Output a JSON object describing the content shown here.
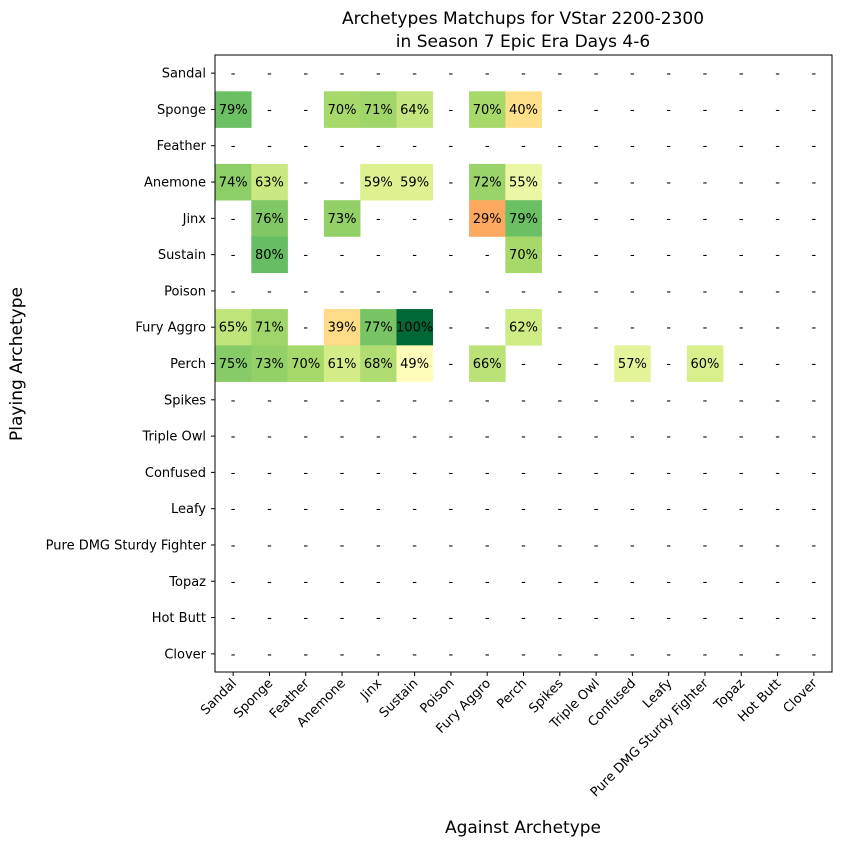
{
  "chart_data": {
    "type": "heatmap",
    "title_lines": [
      "Archetypes Matchups for VStar 2200-2300",
      "in Season 7 Epic Era Days 4-6"
    ],
    "xlabel": "Against Archetype",
    "ylabel": "Playing Archetype",
    "x_categories": [
      "Sandal",
      "Sponge",
      "Feather",
      "Anemone",
      "Jinx",
      "Sustain",
      "Poison",
      "Fury Aggro",
      "Perch",
      "Spikes",
      "Triple Owl",
      "Confused",
      "Leafy",
      "Pure DMG Sturdy Fighter",
      "Topaz",
      "Hot Butt",
      "Clover"
    ],
    "y_categories": [
      "Sandal",
      "Sponge",
      "Feather",
      "Anemone",
      "Jinx",
      "Sustain",
      "Poison",
      "Fury Aggro",
      "Perch",
      "Spikes",
      "Triple Owl",
      "Confused",
      "Leafy",
      "Pure DMG Sturdy Fighter",
      "Topaz",
      "Hot Butt",
      "Clover"
    ],
    "missing_label": "-",
    "colormap": "RdYlGn",
    "value_range": [
      0,
      100
    ],
    "values": [
      [
        null,
        null,
        null,
        null,
        null,
        null,
        null,
        null,
        null,
        null,
        null,
        null,
        null,
        null,
        null,
        null,
        null
      ],
      [
        79,
        null,
        null,
        70,
        71,
        64,
        null,
        70,
        40,
        null,
        null,
        null,
        null,
        null,
        null,
        null,
        null
      ],
      [
        null,
        null,
        null,
        null,
        null,
        null,
        null,
        null,
        null,
        null,
        null,
        null,
        null,
        null,
        null,
        null,
        null
      ],
      [
        74,
        63,
        null,
        null,
        59,
        59,
        null,
        72,
        55,
        null,
        null,
        null,
        null,
        null,
        null,
        null,
        null
      ],
      [
        null,
        76,
        null,
        73,
        null,
        null,
        null,
        29,
        79,
        null,
        null,
        null,
        null,
        null,
        null,
        null,
        null
      ],
      [
        null,
        80,
        null,
        null,
        null,
        null,
        null,
        null,
        70,
        null,
        null,
        null,
        null,
        null,
        null,
        null,
        null
      ],
      [
        null,
        null,
        null,
        null,
        null,
        null,
        null,
        null,
        null,
        null,
        null,
        null,
        null,
        null,
        null,
        null,
        null
      ],
      [
        65,
        71,
        null,
        39,
        77,
        100,
        null,
        null,
        62,
        null,
        null,
        null,
        null,
        null,
        null,
        null,
        null
      ],
      [
        75,
        73,
        70,
        61,
        68,
        49,
        null,
        66,
        null,
        null,
        null,
        57,
        null,
        60,
        null,
        null,
        null
      ],
      [
        null,
        null,
        null,
        null,
        null,
        null,
        null,
        null,
        null,
        null,
        null,
        null,
        null,
        null,
        null,
        null,
        null
      ],
      [
        null,
        null,
        null,
        null,
        null,
        null,
        null,
        null,
        null,
        null,
        null,
        null,
        null,
        null,
        null,
        null,
        null
      ],
      [
        null,
        null,
        null,
        null,
        null,
        null,
        null,
        null,
        null,
        null,
        null,
        null,
        null,
        null,
        null,
        null,
        null
      ],
      [
        null,
        null,
        null,
        null,
        null,
        null,
        null,
        null,
        null,
        null,
        null,
        null,
        null,
        null,
        null,
        null,
        null
      ],
      [
        null,
        null,
        null,
        null,
        null,
        null,
        null,
        null,
        null,
        null,
        null,
        null,
        null,
        null,
        null,
        null,
        null
      ],
      [
        null,
        null,
        null,
        null,
        null,
        null,
        null,
        null,
        null,
        null,
        null,
        null,
        null,
        null,
        null,
        null,
        null
      ],
      [
        null,
        null,
        null,
        null,
        null,
        null,
        null,
        null,
        null,
        null,
        null,
        null,
        null,
        null,
        null,
        null,
        null
      ],
      [
        null,
        null,
        null,
        null,
        null,
        null,
        null,
        null,
        null,
        null,
        null,
        null,
        null,
        null,
        null,
        null,
        null
      ]
    ]
  }
}
